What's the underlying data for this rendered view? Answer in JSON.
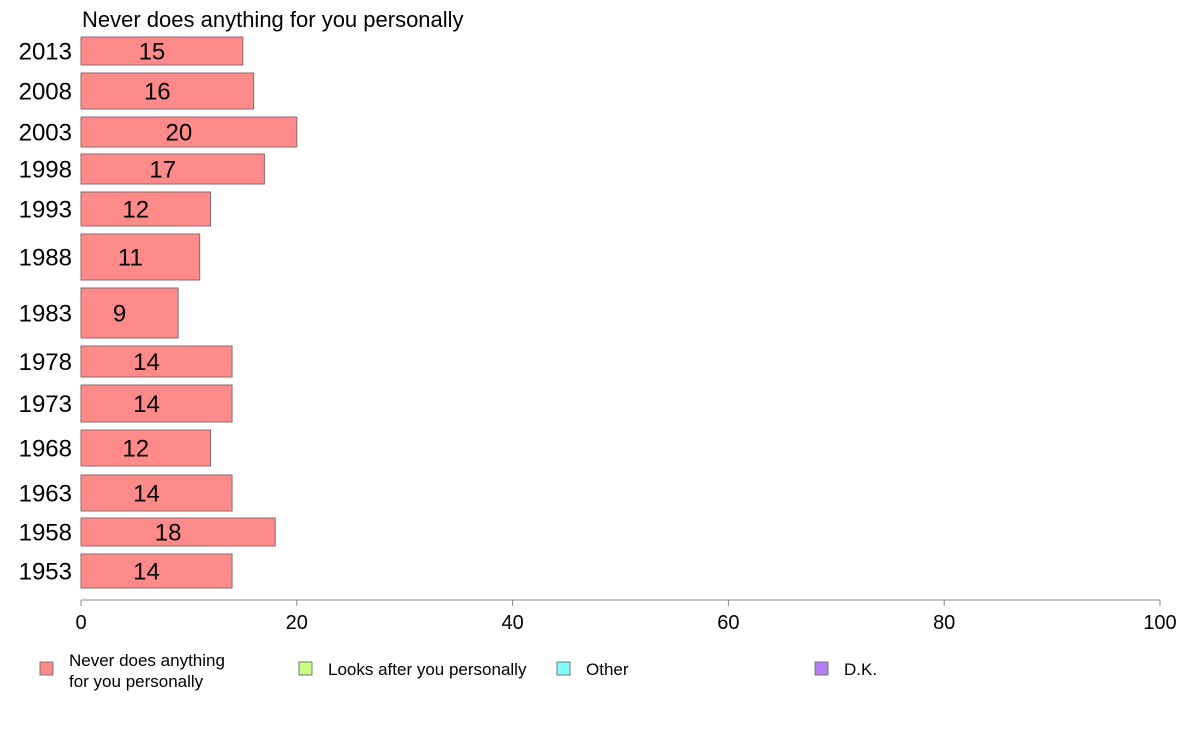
{
  "chart_data": {
    "type": "bar",
    "orientation": "horizontal",
    "title": "Never does anything for you personally",
    "categories": [
      "2013",
      "2008",
      "2003",
      "1998",
      "1993",
      "1988",
      "1983",
      "1978",
      "1973",
      "1968",
      "1963",
      "1958",
      "1953"
    ],
    "series": [
      {
        "name": "Never does anything for you personally",
        "values": [
          15,
          16,
          20,
          17,
          12,
          11,
          9,
          14,
          14,
          12,
          14,
          18,
          14
        ]
      }
    ],
    "xlim": [
      0,
      100
    ],
    "xticks": [
      "0",
      "20",
      "40",
      "60",
      "80",
      "100"
    ],
    "grid": false,
    "legend": {
      "placement": "bottom",
      "entries": [
        {
          "label_lines": [
            "Never does anything",
            "for you personally"
          ],
          "color": "#ff8a8a"
        },
        {
          "label_lines": [
            "Looks after you personally"
          ],
          "color": "#c8ff80"
        },
        {
          "label_lines": [
            "Other"
          ],
          "color": "#80ffff"
        },
        {
          "label_lines": [
            "D.K."
          ],
          "color": "#b07ff0"
        }
      ]
    }
  }
}
